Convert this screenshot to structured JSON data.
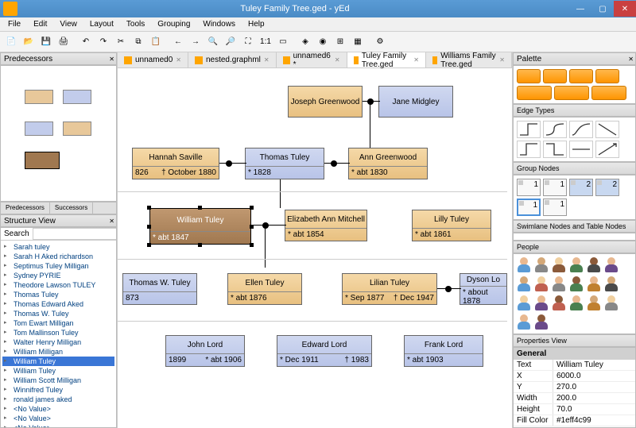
{
  "title": "Tuley Family Tree.ged - yEd",
  "menu": [
    "File",
    "Edit",
    "View",
    "Layout",
    "Tools",
    "Grouping",
    "Windows",
    "Help"
  ],
  "left_panels": {
    "predecessors": "Predecessors",
    "structure": "Structure View",
    "tab_pred": "Predecessors",
    "tab_succ": "Successors"
  },
  "search_label": "Search",
  "search_dropdown": "Text",
  "tree_items": [
    "Sarah  tuley",
    "Sarah H  Aked richardson",
    "Septimus Tuley  Milligan",
    "Sydney  PYRIE",
    "Theodore Lawson  TULEY",
    "Thomas  Tuley",
    "Thomas Edward  Aked",
    "Thomas W.  Tuley",
    "Tom Ewart  Milligan",
    "Tom Mallinson  Tuley",
    "Walter Henry  Milligan",
    "William  Milligan",
    "William  Tuley",
    "William  Tuley",
    "William Scott  Milligan",
    "Winnifred  Tuley",
    "ronald james  aked",
    "<No Value>",
    "<No Value>",
    "<No Value>",
    "<No Value>"
  ],
  "tree_sel": 12,
  "doctabs": [
    {
      "label": "unnamed0",
      "active": false
    },
    {
      "label": "nested.graphml",
      "active": false
    },
    {
      "label": "unnamed6 *",
      "active": false
    },
    {
      "label": "Tuley Family Tree.ged",
      "active": true
    },
    {
      "label": "Williams Family Tree.ged",
      "active": false
    }
  ],
  "nodes": {
    "joseph": {
      "name": "Joseph\nGreenwood",
      "date": ""
    },
    "jane": {
      "name": "Jane\nMidgley",
      "date": ""
    },
    "hannah": {
      "name": "Hannah\nSaville",
      "date_l": "826",
      "date_r": "† October 1880"
    },
    "thomas": {
      "name": "Thomas\nTuley",
      "date": "* 1828"
    },
    "ann": {
      "name": "Ann\nGreenwood",
      "date": "* abt 1830"
    },
    "william": {
      "name": "William\nTuley",
      "date": "* abt 1847"
    },
    "elizabeth": {
      "name": "Elizabeth Ann\nMitchell",
      "date": "* abt 1854"
    },
    "lilly": {
      "name": "Lilly\nTuley",
      "date": "* abt 1861"
    },
    "thomasw": {
      "name": "Thomas W.\nTuley",
      "date": "873"
    },
    "ellen": {
      "name": "Ellen\nTuley",
      "date": "* abt 1876"
    },
    "lilian": {
      "name": "Lilian\nTuley",
      "date_l": "* Sep 1877",
      "date_r": "† Dec 1947"
    },
    "dyson": {
      "name": "Dyson\nLo",
      "date": "* about 1878"
    },
    "john": {
      "name": "John\nLord",
      "date_l": "1899",
      "date_r": "* abt 1906"
    },
    "edward": {
      "name": "Edward\nLord",
      "date_l": "* Dec 1911",
      "date_r": "† 1983"
    },
    "frank": {
      "name": "Frank\nLord",
      "date": "* abt 1903"
    }
  },
  "palette_hdr": {
    "edge": "Edge Types",
    "group": "Group Nodes",
    "swim": "Swimlane Nodes and Table Nodes",
    "people": "People",
    "props": "Properties View"
  },
  "people_colors": [
    {
      "h": "#e8b890",
      "b": "#5a9bd5"
    },
    {
      "h": "#d4a878",
      "b": "#888"
    },
    {
      "h": "#f0d0a0",
      "b": "#8b5a3a"
    },
    {
      "h": "#e8b890",
      "b": "#4a8050"
    },
    {
      "h": "#8b5a3a",
      "b": "#4a4a4a"
    },
    {
      "h": "#e8b890",
      "b": "#6a4a8a"
    },
    {
      "h": "#d4a878",
      "b": "#5a9bd5"
    },
    {
      "h": "#f0d0a0",
      "b": "#c06050"
    },
    {
      "h": "#e8b890",
      "b": "#888"
    },
    {
      "h": "#8b5a3a",
      "b": "#4a8050"
    },
    {
      "h": "#e8b890",
      "b": "#c08030"
    },
    {
      "h": "#d4a878",
      "b": "#4a4a4a"
    },
    {
      "h": "#f0d0a0",
      "b": "#5a9bd5"
    },
    {
      "h": "#e8b890",
      "b": "#6a4a8a"
    },
    {
      "h": "#8b5a3a",
      "b": "#c06050"
    },
    {
      "h": "#e8b890",
      "b": "#4a8050"
    },
    {
      "h": "#d4a878",
      "b": "#c08030"
    },
    {
      "h": "#f0d0a0",
      "b": "#888"
    },
    {
      "h": "#e8b890",
      "b": "#5a9bd5"
    },
    {
      "h": "#8b5a3a",
      "b": "#6a4a8a"
    }
  ],
  "props": {
    "general": "General",
    "rows": [
      {
        "k": "Text",
        "v": "William Tuley"
      },
      {
        "k": "X",
        "v": "6000.0"
      },
      {
        "k": "Y",
        "v": "270.0"
      },
      {
        "k": "Width",
        "v": "200.0"
      },
      {
        "k": "Height",
        "v": "70.0"
      },
      {
        "k": "Fill Color",
        "v": "#1eff4c99"
      }
    ]
  }
}
